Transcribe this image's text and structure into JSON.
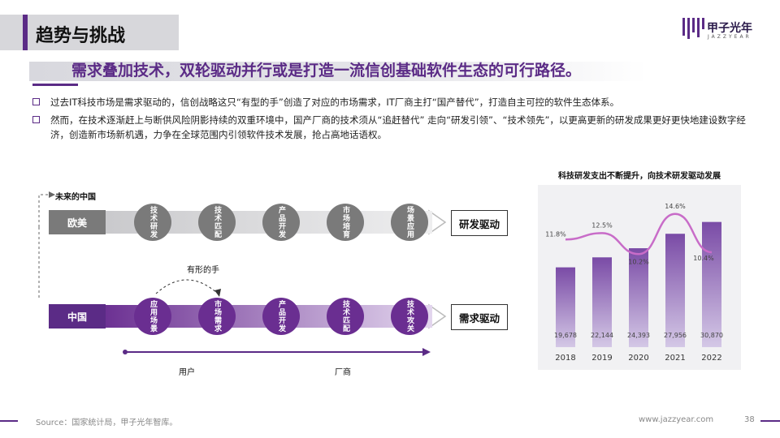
{
  "header": {
    "title": "趋势与挑战",
    "logo_name": "甲子光年",
    "logo_sub": "JAZZYEAR",
    "headline": "需求叠加技术，双轮驱动并行或是打造一流信创基础软件生态的可行路径。"
  },
  "bullets": [
    "过去IT科技市场是需求驱动的，信创战略这只“有型的手”创造了对应的市场需求，IT厂商主打“国产替代”，打造自主可控的软件生态体系。",
    "然而，在技术逐渐赶上与断供风险阴影持续的双重环境中，国产厂商的技术须从“追赶替代” 走向“研发引领”、“技术领先”，以更高更新的研发成果更好更快地建设数字经济，创造新市场新机遇，力争在全球范围内引领软件技术发展，抢占高地话语权。"
  ],
  "flow": {
    "future_label": "未来的中国",
    "west": {
      "tag": "欧美",
      "steps": [
        "技术研发",
        "技术匹配",
        "产品开发",
        "市场培育",
        "场景应用"
      ],
      "end": "研发驱动"
    },
    "visible_hand_label": "有形的手",
    "china": {
      "tag": "中国",
      "steps": [
        "应用场景",
        "市场需求",
        "产品开发",
        "技术匹配",
        "技术攻关"
      ],
      "end": "需求驱动"
    },
    "axis_left": "用户",
    "axis_right": "厂商"
  },
  "chart_data": {
    "type": "bar",
    "title": "科技研发支出不断提升，向技术研发驱动发展",
    "categories": [
      "2018",
      "2019",
      "2020",
      "2021",
      "2022"
    ],
    "series": [
      {
        "values": [
          19678,
          22144,
          24393,
          27956,
          30870
        ],
        "labels": [
          "19,678",
          "22,144",
          "24,393",
          "27,956",
          "30,870"
        ]
      },
      {
        "type": "line",
        "values": [
          11.8,
          12.5,
          10.2,
          14.6,
          10.4
        ],
        "labels": [
          "11.8%",
          "12.5%",
          "10.2%",
          "14.6%",
          "10.4%"
        ]
      }
    ],
    "ylim": [
      0,
      36000
    ],
    "colors": {
      "bar_light": "#d4c8e6",
      "bar_dark": "#7a4ba6",
      "line": "#c86cc8"
    }
  },
  "footer": {
    "source": "Source：国家统计局，甲子光年智库。",
    "website": "www.jazzyear.com",
    "page": "38"
  },
  "colors": {
    "accent": "#5b2b86",
    "west_circle": "#7a7a7a",
    "china_circle": "#6a2e91"
  }
}
